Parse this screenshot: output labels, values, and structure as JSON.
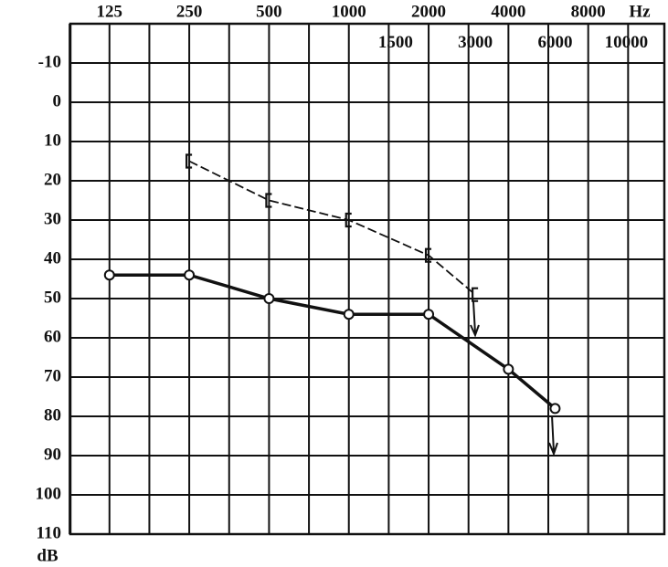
{
  "chart_data": {
    "type": "line",
    "x_unit": "Hz",
    "y_unit": "dB",
    "xscale": "log",
    "xlim": [
      89,
      15500
    ],
    "xticks": [
      125,
      250,
      500,
      1000,
      2000,
      4000,
      8000
    ],
    "xticks2": [
      1500,
      3000,
      6000,
      10000
    ],
    "ylim": [
      -20,
      110
    ],
    "yticks": [
      -10,
      0,
      10,
      20,
      30,
      40,
      50,
      60,
      70,
      80,
      90,
      100,
      110
    ],
    "grid": true,
    "series": [
      {
        "color": "#111111",
        "style": "solid",
        "marker": "circle",
        "x": [
          125,
          250,
          500,
          1000,
          2000,
          4000,
          6000
        ],
        "values": [
          44,
          44,
          50,
          54,
          54,
          68,
          78
        ]
      },
      {
        "color": "#111111",
        "style": "dashed",
        "marker": "bracket",
        "x": [
          250,
          500,
          1000,
          2000,
          3000
        ],
        "values": [
          15,
          25,
          30,
          39,
          49
        ]
      }
    ]
  }
}
